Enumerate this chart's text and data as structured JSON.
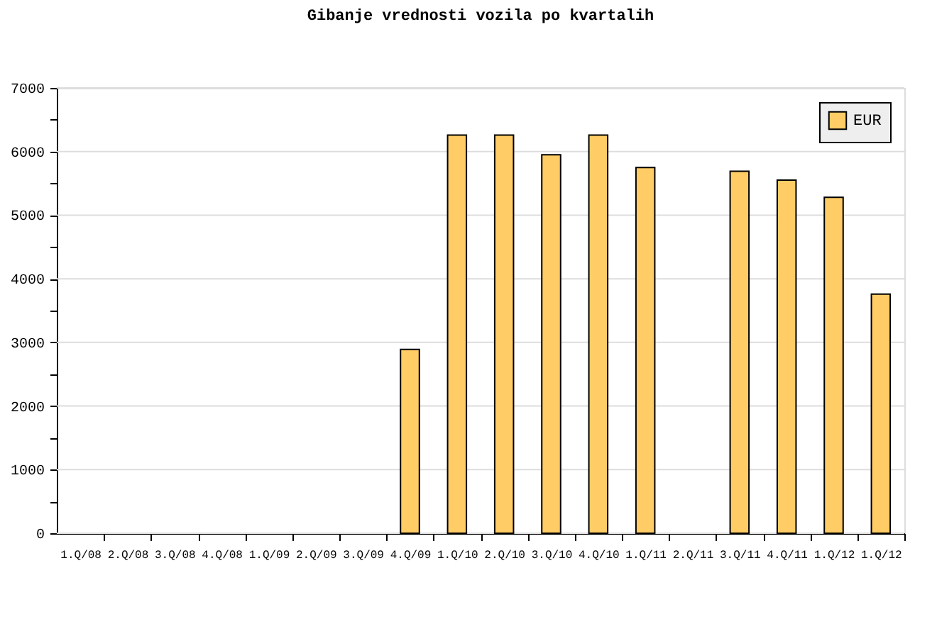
{
  "chart_data": {
    "type": "bar",
    "title": "Gibanje vrednosti vozila po kvartalih",
    "categories": [
      "1.Q/08",
      "2.Q/08",
      "3.Q/08",
      "4.Q/08",
      "1.Q/09",
      "2.Q/09",
      "3.Q/09",
      "4.Q/09",
      "1.Q/10",
      "2.Q/10",
      "3.Q/10",
      "4.Q/10",
      "1.Q/11",
      "2.Q/11",
      "3.Q/11",
      "4.Q/11",
      "1.Q/12",
      "1.Q/12"
    ],
    "series": [
      {
        "name": "EUR",
        "color": "#ffcc66",
        "values": [
          null,
          null,
          null,
          null,
          null,
          null,
          null,
          2890,
          6260,
          6260,
          5950,
          6260,
          5750,
          null,
          5690,
          5550,
          5280,
          3760
        ]
      }
    ],
    "ylim": [
      0,
      7000
    ],
    "yticks": [
      0,
      {
        "value": 500,
        "label": null
      },
      1000,
      {
        "value": 1500,
        "label": null
      },
      2000,
      {
        "value": 2500,
        "label": null
      },
      3000,
      {
        "value": 3500,
        "label": null
      },
      4000,
      {
        "value": 4500,
        "label": null
      },
      5000,
      {
        "value": 5500,
        "label": null
      },
      6000,
      {
        "value": 6500,
        "label": null
      },
      7000
    ],
    "grid": "y",
    "legend": "top right"
  }
}
